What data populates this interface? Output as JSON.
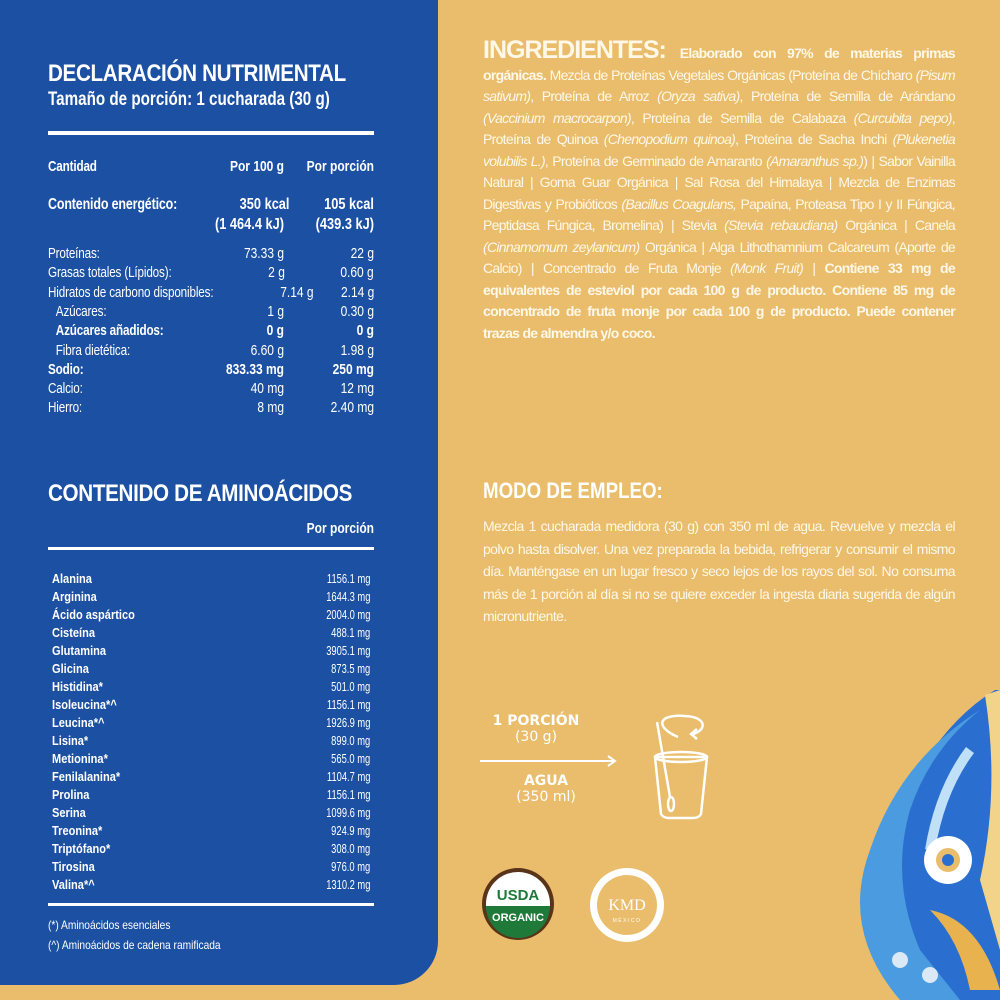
{
  "nutrition": {
    "title": "DECLARACIÓN NUTRIMENTAL",
    "serving": "Tamaño de porción: 1 cucharada (30 g)",
    "headers": {
      "qty": "Cantidad",
      "per100": "Por 100 g",
      "perServing": "Por porción"
    },
    "energy": {
      "label": "Contenido energético:",
      "per100_kcal": "350 kcal",
      "per100_kj": "(1 464.4 kJ)",
      "perServing_kcal": "105 kcal",
      "perServing_kj": "(439.3 kJ)"
    },
    "rows": [
      {
        "label": "Proteínas:",
        "per100": "73.33 g",
        "perServing": "22 g"
      },
      {
        "label": "Grasas totales (Lípidos):",
        "per100": "2 g",
        "perServing": "0.60 g"
      },
      {
        "label": "Hidratos de carbono disponibles:",
        "per100": "7.14 g",
        "perServing": "2.14 g"
      },
      {
        "label": "Azúcares:",
        "per100": "1 g",
        "perServing": "0.30 g"
      },
      {
        "label": "Azúcares añadidos:",
        "per100": "0 g",
        "perServing": "0 g"
      },
      {
        "label": "Fibra dietética:",
        "per100": "6.60 g",
        "perServing": "1.98 g"
      },
      {
        "label": "Sodio:",
        "per100": "833.33 mg",
        "perServing": "250 mg"
      },
      {
        "label": "Calcio:",
        "per100": "40 mg",
        "perServing": "12 mg"
      },
      {
        "label": "Hierro:",
        "per100": "8 mg",
        "perServing": "2.40 mg"
      }
    ]
  },
  "amino": {
    "title": "CONTENIDO DE AMINOÁCIDOS",
    "header": "Por porción",
    "rows": [
      {
        "name": "Alanina",
        "value": "1156.1 mg"
      },
      {
        "name": "Arginina",
        "value": "1644.3 mg"
      },
      {
        "name": "Ácido aspártico",
        "value": "2004.0 mg"
      },
      {
        "name": "Cisteína",
        "value": "488.1 mg"
      },
      {
        "name": "Glutamina",
        "value": "3905.1 mg"
      },
      {
        "name": "Glicina",
        "value": "873.5 mg"
      },
      {
        "name": "Histidina*",
        "value": "501.0 mg"
      },
      {
        "name": "Isoleucina*^",
        "value": "1156.1 mg"
      },
      {
        "name": "Leucina*^",
        "value": "1926.9 mg"
      },
      {
        "name": "Lisina*",
        "value": "899.0 mg"
      },
      {
        "name": "Metionina*",
        "value": "565.0 mg"
      },
      {
        "name": "Fenilalanina*",
        "value": "1104.7 mg"
      },
      {
        "name": "Prolina",
        "value": "1156.1 mg"
      },
      {
        "name": "Serina",
        "value": "1099.6 mg"
      },
      {
        "name": "Treonina*",
        "value": "924.9 mg"
      },
      {
        "name": "Triptófano*",
        "value": "308.0 mg"
      },
      {
        "name": "Tirosina",
        "value": "976.0 mg"
      },
      {
        "name": "Valina*^",
        "value": "1310.2 mg"
      }
    ],
    "footnotes": [
      "(*)  Aminoácidos esenciales",
      "(^)  Aminoácidos de cadena ramificada"
    ]
  },
  "ingredients": {
    "segments": [
      {
        "t": "INGREDIENTES: ",
        "s": "hd"
      },
      {
        "t": "Elaborado con 97% de materias primas orgánicas.",
        "s": "b"
      },
      {
        "t": " Mezcla de Proteínas Vegetales Orgánicas (Proteína de Chícharo ",
        "s": ""
      },
      {
        "t": "(Pisum sativum)",
        "s": "i"
      },
      {
        "t": ", Proteína de Arroz ",
        "s": ""
      },
      {
        "t": "(Oryza sativa)",
        "s": "i"
      },
      {
        "t": ", Proteína de Semilla de Arándano ",
        "s": ""
      },
      {
        "t": "(Vaccinium macrocarpon)",
        "s": "i"
      },
      {
        "t": ", Proteína de Semilla de Calabaza ",
        "s": ""
      },
      {
        "t": "(Curcubita pepo)",
        "s": "i"
      },
      {
        "t": ", Proteína de Quinoa ",
        "s": ""
      },
      {
        "t": "(Chenopodium quinoa)",
        "s": "i"
      },
      {
        "t": ", Proteína de Sacha Inchi ",
        "s": ""
      },
      {
        "t": "(Plukenetia volubilis L.)",
        "s": "i"
      },
      {
        "t": ", Proteína de Germinado de Amaranto ",
        "s": ""
      },
      {
        "t": "(Amaranthus sp.)",
        "s": "i"
      },
      {
        "t": ") | Sabor Vainilla Natural | Goma Guar Orgánica | Sal Rosa del Himalaya | Mezcla de Enzimas Digestivas y Probióticos ",
        "s": ""
      },
      {
        "t": "(Bacillus Coagulans,",
        "s": "i"
      },
      {
        "t": " Papaína, Proteasa Tipo I y II Fúngica, Peptidasa Fúngica, Bromelina) | Stevia ",
        "s": ""
      },
      {
        "t": "(Stevia rebaudiana)",
        "s": "i"
      },
      {
        "t": " Orgánica | Canela ",
        "s": ""
      },
      {
        "t": "(Cinnamomum zeylanicum)",
        "s": "i"
      },
      {
        "t": " Orgánica | Alga Lithothamnium Calcareum (Aporte de Calcio) | Concentrado de Fruta Monje ",
        "s": ""
      },
      {
        "t": "(Monk Fruit)",
        "s": "i"
      },
      {
        "t": " | ",
        "s": ""
      },
      {
        "t": "Contiene 33 mg de equivalentes de esteviol por cada 100 g de producto. Contiene 85 mg de concentrado de fruta monje por cada 100 g de producto. Puede contener trazas de almendra y/o coco.",
        "s": "b"
      }
    ]
  },
  "usage": {
    "title": "MODO DE EMPLEO:",
    "text": "Mezcla 1 cucharada medidora (30 g) con 350 ml de agua. Revuelve y mezcla el polvo hasta disolver. Una vez preparada la bebida, refrigerar y consumir el mismo día. Manténgase en un lugar fresco y seco lejos de los rayos del sol. No consuma más de 1 porción al día si no se quiere exceder la ingesta diaria sugerida de algún micronutriente.",
    "portion": "1 PORCIÓN",
    "portion_amount": "(30 g)",
    "water": "AGUA",
    "water_amount": "(350 ml)"
  },
  "logos": {
    "usda_top": "USDA",
    "usda_bottom": "ORGANIC",
    "kmd": "KMD",
    "kmd_sub": "MÉXICO"
  },
  "colors": {
    "blue_panel": "#1b50a3",
    "beige": "#e9bd6b",
    "usda_green": "#1f7a3a",
    "usda_brown": "#5a3418"
  }
}
